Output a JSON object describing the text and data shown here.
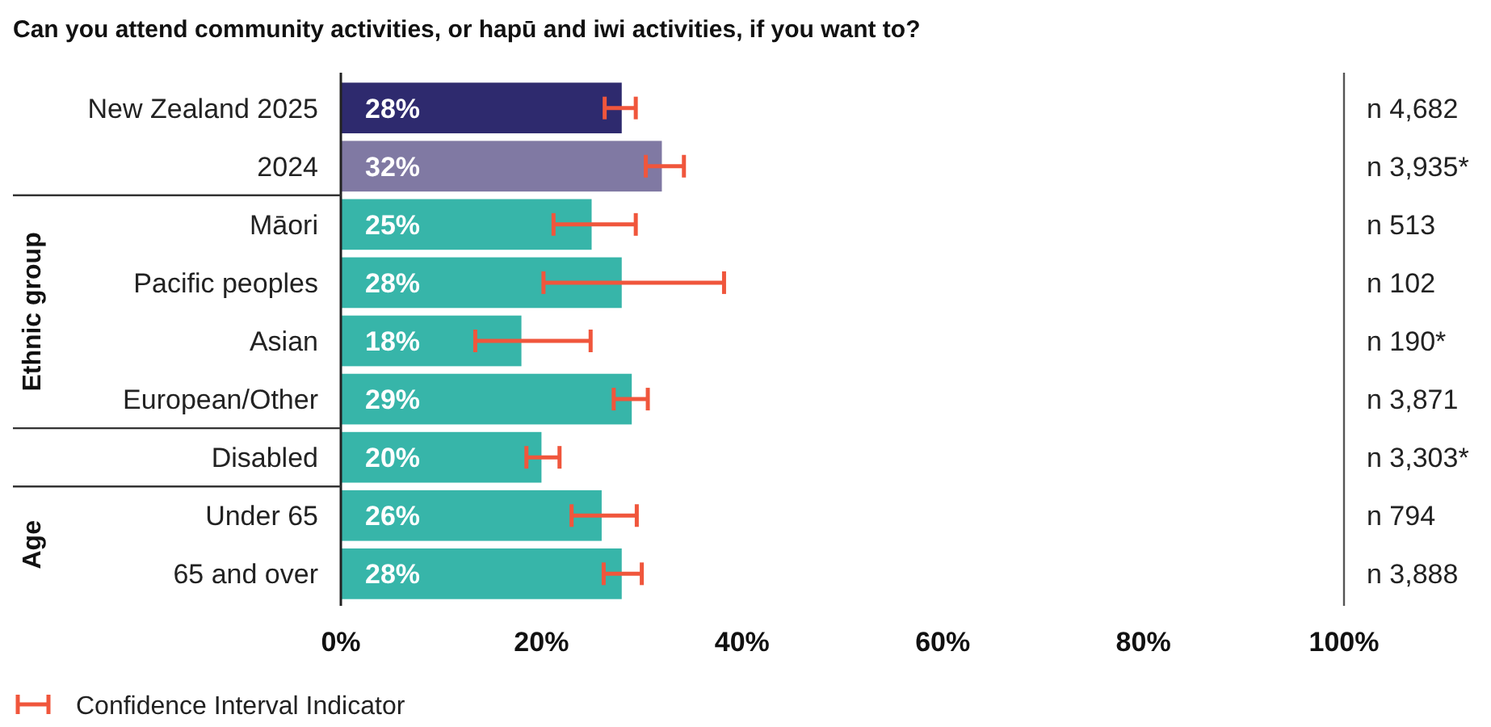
{
  "chart_data": {
    "type": "bar",
    "orientation": "horizontal",
    "title": "Can you attend community activities, or hapū and iwi activities, if you want to?",
    "categories": [
      "New Zealand 2025",
      "2024",
      "Māori",
      "Pacific peoples",
      "Asian",
      "European/Other",
      "Disabled",
      "Under 65",
      "65 and over"
    ],
    "values": [
      28,
      32,
      25,
      28,
      18,
      29,
      20,
      26,
      28
    ],
    "colors": [
      "#2e2a6e",
      "#8079a3",
      "#37b5a9",
      "#37b5a9",
      "#37b5a9",
      "#37b5a9",
      "#37b5a9",
      "#37b5a9",
      "#37b5a9"
    ],
    "errors": [
      [
        26.3,
        29.4
      ],
      [
        30.4,
        34.2
      ],
      [
        21.2,
        29.4
      ],
      [
        20.2,
        38.2
      ],
      [
        13.4,
        24.9
      ],
      [
        27.2,
        30.6
      ],
      [
        18.5,
        21.8
      ],
      [
        23.0,
        29.5
      ],
      [
        26.2,
        30.0
      ]
    ],
    "value_labels": [
      "28%",
      "32%",
      "25%",
      "28%",
      "18%",
      "29%",
      "20%",
      "26%",
      "28%"
    ],
    "xlim": [
      0,
      100
    ],
    "xticks": [
      {
        "value": 0,
        "label": "0%"
      },
      {
        "value": 20,
        "label": "20%"
      },
      {
        "value": 40,
        "label": "40%"
      },
      {
        "value": 60,
        "label": "60%"
      },
      {
        "value": 80,
        "label": "80%"
      },
      {
        "value": 100,
        "label": "100%"
      }
    ],
    "grid": false,
    "annotations": [
      "n 4,682",
      "n 3,935*",
      "n 513",
      "n 102",
      "n 190*",
      "n 3,871",
      "n 3,303*",
      "n 794",
      "n 3,888",
      "Ethnic group",
      "Age",
      "Confidence Interval Indicator"
    ]
  }
}
